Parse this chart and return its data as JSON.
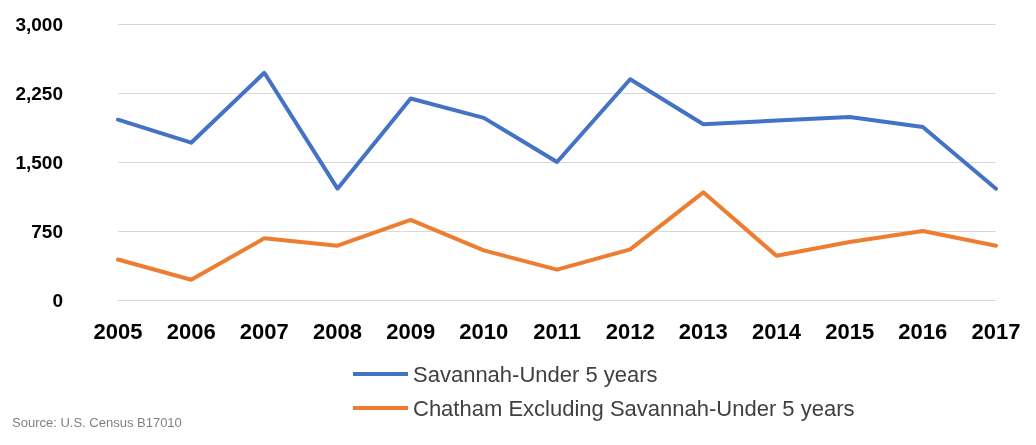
{
  "chart_data": {
    "type": "line",
    "categories": [
      "2005",
      "2006",
      "2007",
      "2008",
      "2009",
      "2010",
      "2011",
      "2012",
      "2013",
      "2014",
      "2015",
      "2016",
      "2017"
    ],
    "series": [
      {
        "name": "Savannah-Under 5 years",
        "color": "#4472c4",
        "values": [
          1960,
          1710,
          2470,
          1210,
          2190,
          1980,
          1500,
          2400,
          1910,
          1950,
          1990,
          1880,
          1210
        ]
      },
      {
        "name": "Chatham Excluding Savannah-Under 5 years",
        "color": "#ed7d31",
        "values": [
          440,
          220,
          670,
          590,
          870,
          540,
          330,
          550,
          1170,
          480,
          630,
          750,
          590
        ]
      }
    ],
    "ylim": [
      0,
      3000
    ],
    "yticks": [
      0,
      750,
      {
        "value": 1500,
        "label": "1,500"
      },
      {
        "value": 2250,
        "label": "2,250"
      },
      {
        "value": 3000,
        "label": "3,000"
      }
    ],
    "grid": "y",
    "legend": "bottom",
    "marker": "none",
    "line_style": "solid",
    "annotations": [
      "Source: U.S. Census B17010"
    ]
  }
}
